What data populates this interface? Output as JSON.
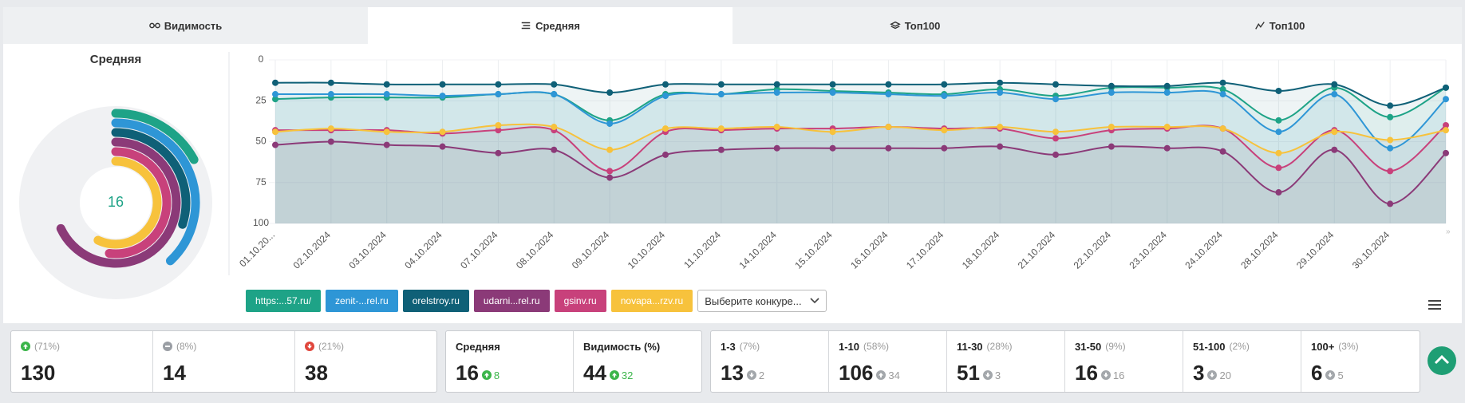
{
  "tabs": [
    "Видимость",
    "Средняя",
    "Топ100",
    "Топ100"
  ],
  "active_tab": 1,
  "panel_title": "Средняя",
  "radial": {
    "type": "radial_bar",
    "center_label": 16,
    "lim": [
      0,
      100
    ],
    "values": [
      17,
      38,
      30,
      68,
      52,
      57
    ],
    "colors": [
      "#1ea387",
      "#2e96d6",
      "#0f6077",
      "#8b3a78",
      "#c8417b",
      "#f7c23c"
    ]
  },
  "chart_data": {
    "type": "line",
    "y_inverted": true,
    "ylim": [
      0,
      100
    ],
    "yticks": [
      0,
      25,
      50,
      75,
      100
    ],
    "categories": [
      "01.10.20...",
      "02.10.2024",
      "03.10.2024",
      "04.10.2024",
      "07.10.2024",
      "08.10.2024",
      "09.10.2024",
      "10.10.2024",
      "11.10.2024",
      "14.10.2024",
      "15.10.2024",
      "16.10.2024",
      "17.10.2024",
      "18.10.2024",
      "21.10.2024",
      "22.10.2024",
      "23.10.2024",
      "24.10.2024",
      "28.10.2024",
      "29.10.2024",
      "30.10.2024",
      null
    ],
    "series": [
      {
        "name": "https:...57.ru/",
        "color": "#1ea387",
        "values": [
          24,
          23,
          23,
          23,
          21,
          21,
          37,
          21,
          21,
          18,
          19,
          20,
          21,
          18,
          22,
          17,
          17,
          18,
          37,
          17,
          35,
          17
        ]
      },
      {
        "name": "zenit-...rel.ru",
        "color": "#2e96d6",
        "values": [
          21,
          21,
          21,
          22,
          21,
          21,
          39,
          22,
          21,
          20,
          20,
          21,
          22,
          20,
          24,
          20,
          20,
          21,
          44,
          21,
          54,
          24
        ]
      },
      {
        "name": "orelstroy.ru",
        "color": "#0f6077",
        "values": [
          14,
          14,
          15,
          15,
          15,
          15,
          20,
          15,
          15,
          15,
          15,
          15,
          15,
          14,
          15,
          16,
          16,
          14,
          19,
          15,
          28,
          17
        ]
      },
      {
        "name": "udarni...rel.ru",
        "color": "#8b3a78",
        "values": [
          52,
          50,
          52,
          53,
          57,
          55,
          72,
          58,
          55,
          54,
          54,
          54,
          54,
          53,
          58,
          53,
          54,
          56,
          81,
          55,
          88,
          57
        ]
      },
      {
        "name": "gsinv.ru",
        "color": "#c8417b",
        "values": [
          43,
          43,
          43,
          45,
          43,
          43,
          68,
          44,
          43,
          42,
          42,
          41,
          42,
          42,
          48,
          43,
          42,
          42,
          66,
          43,
          68,
          40
        ]
      },
      {
        "name": "novapa...rzv.ru",
        "color": "#f7c23c",
        "values": [
          44,
          42,
          44,
          44,
          40,
          41,
          55,
          42,
          42,
          41,
          44,
          41,
          43,
          41,
          44,
          41,
          41,
          42,
          57,
          44,
          49,
          43
        ]
      }
    ]
  },
  "competitor_select": "Выберите конкуре...",
  "stats": {
    "distribution": [
      {
        "share": "(71%)",
        "value": 130,
        "icon": "up"
      },
      {
        "share": "(8%)",
        "value": 14,
        "icon": "same"
      },
      {
        "share": "(21%)",
        "value": 38,
        "icon": "down"
      }
    ],
    "summary": [
      {
        "label": "Средняя",
        "value": 16,
        "delta": 8,
        "icon": "up"
      },
      {
        "label": "Видимость (%)",
        "value": 44,
        "delta": 32,
        "icon": "up"
      }
    ],
    "ranges": [
      {
        "label": "1-3",
        "share": "(7%)",
        "value": 13,
        "delta": 2,
        "icon": "down"
      },
      {
        "label": "1-10",
        "share": "(58%)",
        "value": 106,
        "delta": 34,
        "icon": "up"
      },
      {
        "label": "11-30",
        "share": "(28%)",
        "value": 51,
        "delta": 3,
        "icon": "down"
      },
      {
        "label": "31-50",
        "share": "(9%)",
        "value": 16,
        "delta": 16,
        "icon": "down"
      },
      {
        "label": "51-100",
        "share": "(2%)",
        "value": 3,
        "delta": 20,
        "icon": "down"
      },
      {
        "label": "100+",
        "share": "(3%)",
        "value": 6,
        "delta": 5,
        "icon": "down"
      }
    ]
  }
}
